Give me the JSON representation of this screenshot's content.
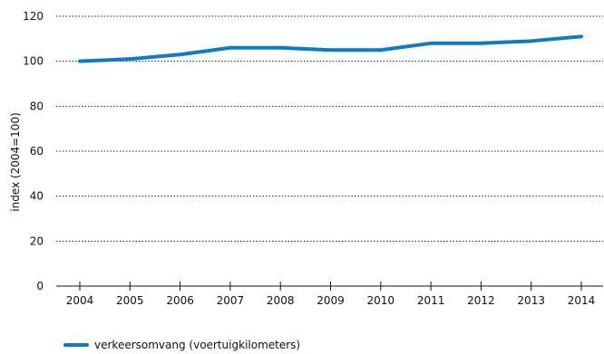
{
  "chart_data": {
    "type": "line",
    "title": "",
    "xlabel": "",
    "ylabel": "index (2004=100)",
    "categories": [
      "2004",
      "2005",
      "2006",
      "2007",
      "2008",
      "2009",
      "2010",
      "2011",
      "2012",
      "2013",
      "2014"
    ],
    "series": [
      {
        "name": "verkeersomvang (voertuigkilometers)",
        "color": "#0f7bc1",
        "values": [
          100,
          101,
          103,
          106,
          106,
          105,
          105,
          108,
          108,
          109,
          111
        ]
      }
    ],
    "ylim": [
      0,
      120
    ],
    "yticks": [
      0,
      20,
      40,
      60,
      80,
      100,
      120
    ],
    "grid": "horizontal-dotted",
    "legend_position": "bottom-left"
  }
}
